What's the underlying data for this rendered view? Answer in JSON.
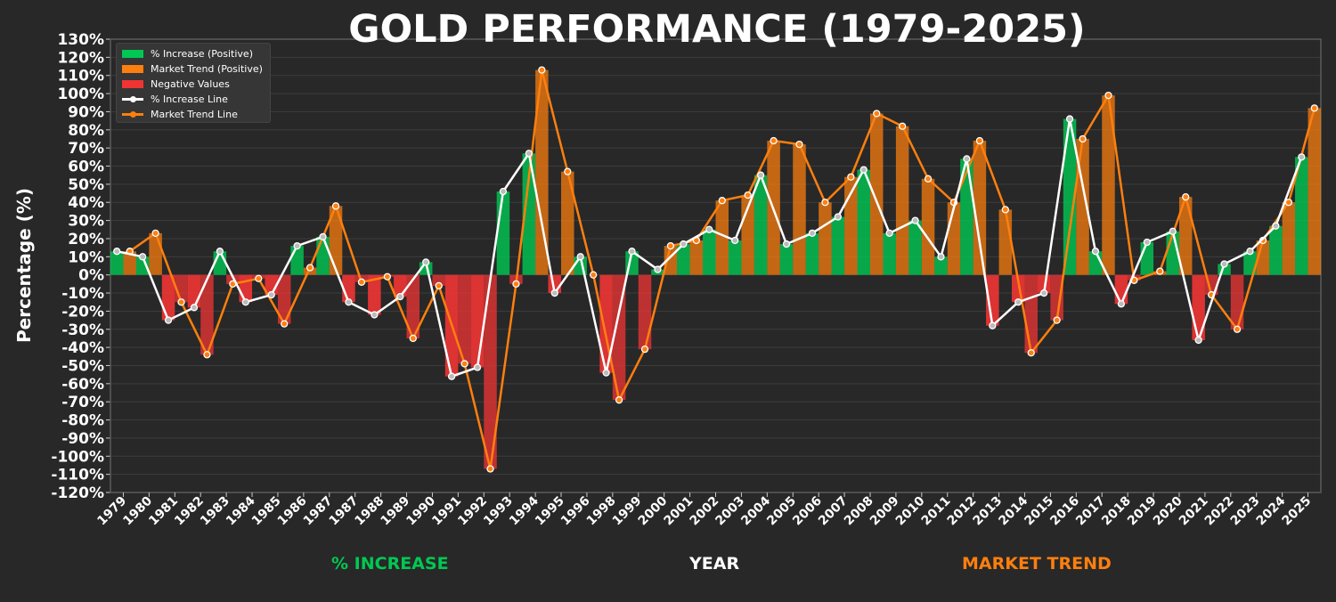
{
  "chart_data": {
    "type": "bar",
    "title": "GOLD PERFORMANCE (1979-2025)",
    "xlabel": "YEAR",
    "ylabel": "Percentage (%)",
    "ylim": [
      -120,
      130
    ],
    "ytick_step": 10,
    "grid": true,
    "legend_placement": "top-left",
    "footer_labels": {
      "left": "% INCREASE",
      "right": "MARKET TREND"
    },
    "legend": [
      "% Increase (Positive)",
      "Market Trend (Positive)",
      "Negative Values",
      "% Increase Line",
      "Market Trend Line"
    ],
    "categories": [
      "1979",
      "1980",
      "1981",
      "1982",
      "1983",
      "1984",
      "1985",
      "1986",
      "1987",
      "1987",
      "1988",
      "1989",
      "1990",
      "1991",
      "1992",
      "1993",
      "1994",
      "1995",
      "1996",
      "1998",
      "1999",
      "2000",
      "2001",
      "2002",
      "2003",
      "2004",
      "2005",
      "2006",
      "2007",
      "2008",
      "2009",
      "2010",
      "2011",
      "2012",
      "2013",
      "2014",
      "2015",
      "2016",
      "2017",
      "2018",
      "2019",
      "2020",
      "2021",
      "2022",
      "2023",
      "2024",
      "2025"
    ],
    "series": [
      {
        "name": "% Increase",
        "values": [
          13,
          10,
          -25,
          -18,
          13,
          -15,
          -11,
          16,
          21,
          -15,
          -22,
          -12,
          7,
          -56,
          -51,
          46,
          67,
          -10,
          10,
          -54,
          13,
          3,
          17,
          25,
          19,
          55,
          17,
          23,
          32,
          58,
          23,
          30,
          10,
          64,
          -28,
          -15,
          -10,
          86,
          13,
          -16,
          18,
          24,
          -36,
          6,
          13,
          27,
          65
        ]
      },
      {
        "name": "Market Trend",
        "values": [
          13,
          23,
          -15,
          -44,
          -5,
          -2,
          -27,
          4,
          38,
          -4,
          -1,
          -35,
          -6,
          -49,
          -107,
          -5,
          113,
          57,
          0,
          -69,
          -41,
          16,
          19,
          41,
          44,
          74,
          72,
          40,
          54,
          89,
          82,
          53,
          40,
          74,
          36,
          -43,
          -25,
          75,
          99,
          -3,
          2,
          43,
          -11,
          -30,
          19,
          40,
          92
        ]
      }
    ],
    "colors": {
      "background": "#282828",
      "increase_pos": "#00c853",
      "trend_pos": "#ff7f0e",
      "negative": "#f03434",
      "increase_line": "#ffffff",
      "trend_line": "#ff7f0e",
      "grid": "#3c3c3c"
    }
  }
}
